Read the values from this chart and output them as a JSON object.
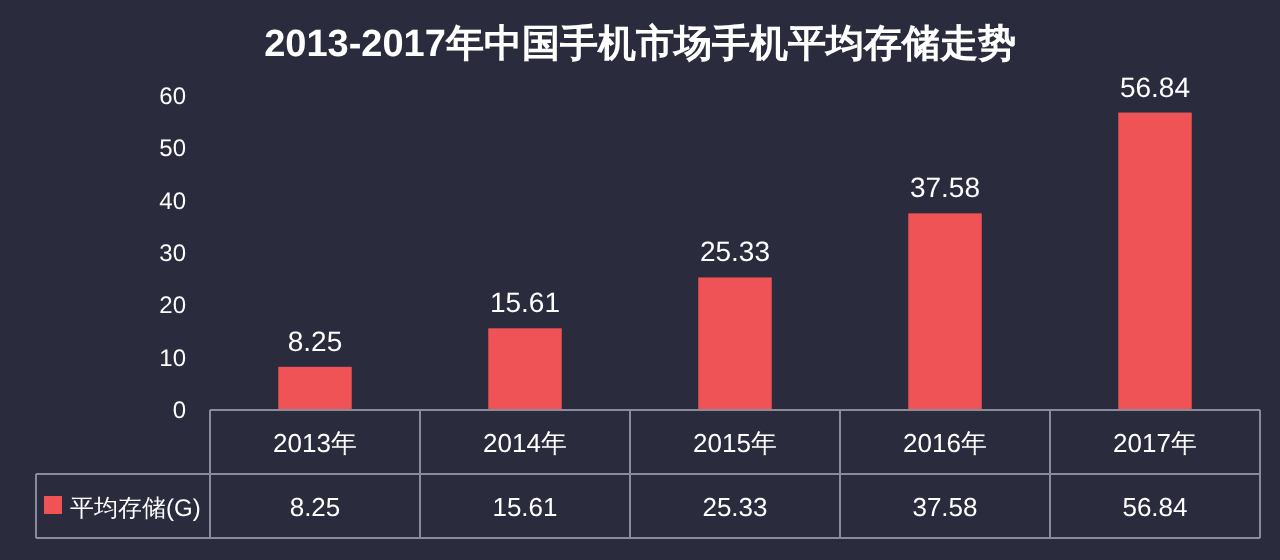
{
  "chart_data": {
    "type": "bar",
    "title": "2013-2017年中国手机市场手机平均存储走势",
    "categories": [
      "2013年",
      "2014年",
      "2015年",
      "2016年",
      "2017年"
    ],
    "series": [
      {
        "name": "平均存储(G)",
        "color": "#f05356",
        "values": [
          8.25,
          15.61,
          25.33,
          37.58,
          56.84
        ],
        "value_labels": [
          "8.25",
          "15.61",
          "25.33",
          "37.58",
          "56.84"
        ]
      }
    ],
    "annotations": [
      "8.25",
      "15.61",
      "25.33",
      "37.58",
      "56.84"
    ],
    "ylim": [
      0,
      60
    ],
    "yticks": [
      0,
      10,
      20,
      30,
      40,
      50,
      60
    ],
    "data_labels": true,
    "legend": "bottom left",
    "grid": false
  }
}
